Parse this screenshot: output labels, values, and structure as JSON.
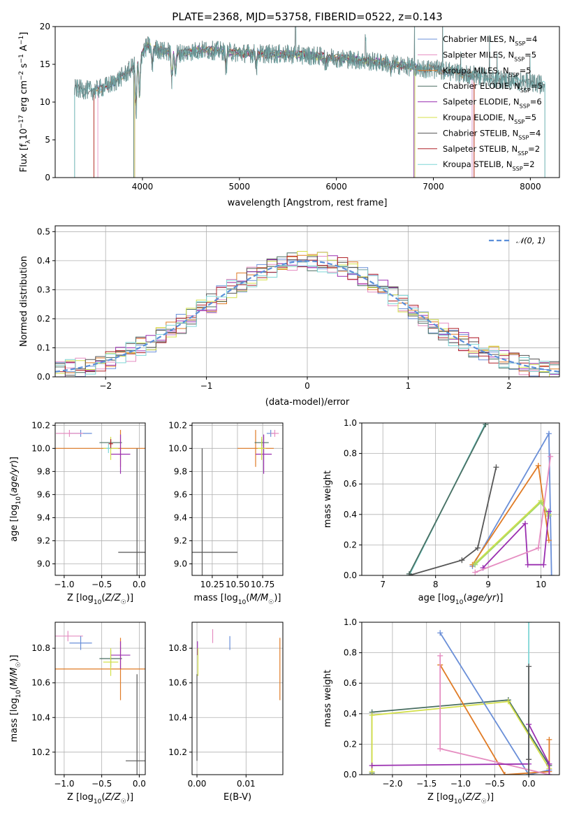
{
  "colors": {
    "chabrier_miles": "#6a8fd8",
    "salpeter_miles": "#e58dc1",
    "kroupa_miles": "#e07b25",
    "chabrier_elodie": "#4a6f62",
    "salpeter_elodie": "#9a2fb0",
    "kroupa_elodie": "#d4e04a",
    "chabrier_stelib": "#555555",
    "salpeter_stelib": "#b0242a",
    "kroupa_stelib": "#7fd6d6",
    "green_line": "#a6d96a",
    "normal": "#5b8fd9"
  },
  "chart_data": [
    {
      "id": "spectrum",
      "type": "line",
      "title": "PLATE=2368, MJD=53758, FIBERID=0522, z=0.143",
      "xlabel": "wavelength [Angstrom, rest frame]",
      "ylabel": "Flux [fλ10⁻¹⁷ erg cm⁻² s⁻¹ A⁻¹]",
      "xlim": [
        3100,
        8300
      ],
      "ylim": [
        0,
        20
      ],
      "xticks": [
        "4000",
        "5000",
        "6000",
        "7000",
        "8000"
      ],
      "yticks": [
        "0",
        "5",
        "10",
        "15",
        "20"
      ],
      "continuum": {
        "x": [
          3300,
          3500,
          3700,
          3850,
          3950,
          4050,
          4200,
          4400,
          4600,
          4800,
          5000,
          5300,
          5600,
          5900,
          6200,
          6500,
          6800,
          7100,
          7400,
          7700,
          8000,
          8150
        ],
        "y": [
          11.8,
          11.5,
          12.5,
          14.0,
          15.5,
          17.5,
          16.8,
          16.5,
          16.9,
          16.8,
          16.5,
          16.4,
          16.3,
          16.0,
          15.6,
          15.2,
          14.6,
          14.2,
          13.6,
          13.0,
          12.5,
          12.3
        ]
      },
      "legend": [
        {
          "label": "Chabrier MILES, NSSP=4",
          "color_key": "chabrier_miles"
        },
        {
          "label": "Salpeter MILES, NSSP=5",
          "color_key": "salpeter_miles"
        },
        {
          "label": "Kroupa MILES, NSSP=5",
          "color_key": "kroupa_miles"
        },
        {
          "label": "Chabrier ELODIE, NSSP=5",
          "color_key": "chabrier_elodie"
        },
        {
          "label": "Salpeter ELODIE, NSSP=6",
          "color_key": "salpeter_elodie"
        },
        {
          "label": "Kroupa ELODIE, NSSP=5",
          "color_key": "kroupa_elodie"
        },
        {
          "label": "Chabrier STELIB, NSSP=4",
          "color_key": "chabrier_stelib"
        },
        {
          "label": "Salpeter STELIB, NSSP=2",
          "color_key": "salpeter_stelib"
        },
        {
          "label": "Kroupa STELIB, NSSP=2",
          "color_key": "kroupa_stelib"
        }
      ],
      "legend_position": "right"
    },
    {
      "id": "residuals",
      "type": "histogram",
      "xlabel": "(data-model)/error",
      "ylabel": "Normed distribution",
      "xlim": [
        -2.5,
        2.5
      ],
      "ylim": [
        0,
        0.52
      ],
      "xticks": [
        "−2",
        "−1",
        "0",
        "1",
        "2"
      ],
      "yticks": [
        "0.0",
        "0.1",
        "0.2",
        "0.3",
        "0.4",
        "0.5"
      ],
      "bin_width": 0.1,
      "legend": "𝒩(0, 1)",
      "legend_position": "top-right",
      "grid": true
    },
    {
      "id": "age_vs_Z",
      "type": "errorbar",
      "xlabel": "Z [log10(Z/Z☉)]",
      "ylabel": "age  [log10(age/yr)]",
      "xlim": [
        -1.12,
        0.08
      ],
      "ylim": [
        8.9,
        10.22
      ],
      "xticks": [
        "−1.0",
        "−0.5",
        "0.0"
      ],
      "yticks": [
        "9.0",
        "9.2",
        "9.4",
        "9.6",
        "9.8",
        "10.0",
        "10.2"
      ],
      "points": [
        {
          "c": "chabrier_miles",
          "x": -0.78,
          "xe": 0.15,
          "y": 10.13,
          "ye": 0.03
        },
        {
          "c": "salpeter_miles",
          "x": -0.93,
          "xe": 0.18,
          "y": 10.13,
          "ye": 0.03
        },
        {
          "c": "kroupa_miles",
          "x": -0.25,
          "xe": 1.0,
          "y": 10.0,
          "ye": 0.16
        },
        {
          "c": "chabrier_elodie",
          "x": -0.38,
          "xe": 0.15,
          "y": 10.05,
          "ye": 0.03
        },
        {
          "c": "salpeter_elodie",
          "x": -0.25,
          "xe": 0.13,
          "y": 9.95,
          "ye": 0.17
        },
        {
          "c": "kroupa_elodie",
          "x": -0.38,
          "xe": 0.1,
          "y": 10.0,
          "ye": 0.1
        },
        {
          "c": "chabrier_stelib",
          "x": -0.03,
          "xe": 0.25,
          "y": 9.1,
          "ye": 0.9
        },
        {
          "c": "salpeter_stelib",
          "x": -0.38,
          "xe": 0.03,
          "y": 10.04,
          "ye": 0.04
        },
        {
          "c": "kroupa_stelib",
          "x": -0.41,
          "xe": 0.03,
          "y": 10.0,
          "ye": 0.04
        }
      ]
    },
    {
      "id": "age_vs_mass",
      "type": "errorbar",
      "xlabel": "mass [log10(M/M☉)]",
      "ylabel": "",
      "xlim": [
        10.05,
        10.95
      ],
      "ylim": [
        8.9,
        10.22
      ],
      "xticks": [
        "10.25",
        "10.50",
        "10.75"
      ],
      "yticks": [
        "9.0",
        "9.2",
        "9.4",
        "9.6",
        "9.8",
        "10.0",
        "10.2"
      ],
      "points": [
        {
          "c": "chabrier_miles",
          "x": 10.83,
          "xe": 0.04,
          "y": 10.13,
          "ye": 0.03
        },
        {
          "c": "salpeter_miles",
          "x": 10.87,
          "xe": 0.04,
          "y": 10.13,
          "ye": 0.03
        },
        {
          "c": "kroupa_miles",
          "x": 10.68,
          "xe": 0.18,
          "y": 10.0,
          "ye": 0.16
        },
        {
          "c": "chabrier_elodie",
          "x": 10.74,
          "xe": 0.07,
          "y": 10.05,
          "ye": 0.03
        },
        {
          "c": "salpeter_elodie",
          "x": 10.76,
          "xe": 0.08,
          "y": 9.95,
          "ye": 0.17
        },
        {
          "c": "kroupa_elodie",
          "x": 10.74,
          "xe": 0.04,
          "y": 10.0,
          "ye": 0.1
        },
        {
          "c": "chabrier_stelib",
          "x": 10.15,
          "xe": 0.35,
          "y": 9.1,
          "ye": 0.9
        }
      ]
    },
    {
      "id": "weight_vs_age",
      "type": "line",
      "xlabel": "age  [log10(age/yr)]",
      "ylabel": "mass weight",
      "xlim": [
        6.6,
        10.35
      ],
      "ylim": [
        0,
        1
      ],
      "xticks": [
        "7",
        "8",
        "9",
        "10"
      ],
      "yticks": [
        "0.0",
        "0.2",
        "0.4",
        "0.6",
        "0.8",
        "1.0"
      ],
      "grid": true,
      "series": [
        {
          "c": "kroupa_stelib",
          "x": [
            7.5,
            8.95
          ],
          "y": [
            0.0,
            1.0
          ]
        },
        {
          "c": "chabrier_elodie",
          "x": [
            7.5,
            8.95
          ],
          "y": [
            0.01,
            0.99
          ]
        },
        {
          "c": "chabrier_stelib",
          "x": [
            7.5,
            8.5,
            8.8,
            9.15
          ],
          "y": [
            0.0,
            0.1,
            0.18,
            0.71
          ]
        },
        {
          "c": "chabrier_miles",
          "x": [
            8.7,
            10.15,
            10.2
          ],
          "y": [
            0.06,
            0.93,
            0.0
          ]
        },
        {
          "c": "kroupa_miles",
          "x": [
            8.7,
            9.95,
            10.15
          ],
          "y": [
            0.07,
            0.72,
            0.23
          ]
        },
        {
          "c": "kroupa_elodie",
          "x": [
            8.75,
            10.0,
            10.15
          ],
          "y": [
            0.08,
            0.49,
            0.4
          ]
        },
        {
          "c": "green_line",
          "x": [
            8.75,
            10.0,
            10.15
          ],
          "y": [
            0.07,
            0.48,
            0.39
          ]
        },
        {
          "c": "salpeter_elodie",
          "x": [
            8.9,
            9.7,
            9.75,
            10.05,
            10.15
          ],
          "y": [
            0.05,
            0.34,
            0.07,
            0.07,
            0.42
          ]
        },
        {
          "c": "salpeter_miles",
          "x": [
            8.75,
            9.95,
            10.18
          ],
          "y": [
            0.02,
            0.18,
            0.78
          ]
        }
      ]
    },
    {
      "id": "mass_vs_Z",
      "type": "errorbar",
      "xlabel": "Z [log10(Z/Z☉)]",
      "ylabel": "mass [log10(M/M☉)]",
      "xlim": [
        -1.12,
        0.08
      ],
      "ylim": [
        10.07,
        10.95
      ],
      "xticks": [
        "−1.0",
        "−0.5",
        "0.0"
      ],
      "yticks": [
        "10.2",
        "10.4",
        "10.6",
        "10.8"
      ],
      "points": [
        {
          "c": "salpeter_miles",
          "x": -0.95,
          "xe": 0.2,
          "y": 10.87,
          "ye": 0.03
        },
        {
          "c": "chabrier_miles",
          "x": -0.78,
          "xe": 0.15,
          "y": 10.83,
          "ye": 0.04
        },
        {
          "c": "kroupa_miles",
          "x": -0.25,
          "xe": 1.0,
          "y": 10.68,
          "ye": 0.18
        },
        {
          "c": "chabrier_elodie",
          "x": -0.38,
          "xe": 0.15,
          "y": 10.74,
          "ye": 0.05
        },
        {
          "c": "salpeter_elodie",
          "x": -0.25,
          "xe": 0.13,
          "y": 10.76,
          "ye": 0.08
        },
        {
          "c": "kroupa_elodie",
          "x": -0.38,
          "xe": 0.1,
          "y": 10.72,
          "ye": 0.08
        },
        {
          "c": "chabrier_stelib",
          "x": -0.03,
          "xe": 0.15,
          "y": 10.15,
          "ye": 0.5
        }
      ]
    },
    {
      "id": "mass_vs_ebv",
      "type": "errorbar",
      "xlabel": "E(B-V)",
      "ylabel": "",
      "xlim": [
        -0.001,
        0.0175
      ],
      "ylim": [
        10.07,
        10.95
      ],
      "xticks": [
        "0.00",
        "0.01"
      ],
      "yticks": [
        "10.2",
        "10.4",
        "10.6",
        "10.8"
      ],
      "points": [
        {
          "c": "salpeter_miles",
          "x": 0.0032,
          "xe": 0,
          "y": 10.87,
          "ye": 0.04
        },
        {
          "c": "chabrier_miles",
          "x": 0.0067,
          "xe": 0,
          "y": 10.83,
          "ye": 0.04
        },
        {
          "c": "kroupa_miles",
          "x": 0.0169,
          "xe": 0,
          "y": 10.68,
          "ye": 0.18
        },
        {
          "c": "salpeter_elodie",
          "x": 0.0001,
          "xe": 0,
          "y": 10.8,
          "ye": 0.04
        },
        {
          "c": "kroupa_elodie",
          "x": 0.0002,
          "xe": 0,
          "y": 10.72,
          "ye": 0.08
        },
        {
          "c": "chabrier_stelib",
          "x": 0.0,
          "xe": 0,
          "y": 10.4,
          "ye": 0.25
        }
      ]
    },
    {
      "id": "weight_vs_Z",
      "type": "line",
      "xlabel": "Z [log10(Z/Z☉)]",
      "ylabel": "mass weight",
      "xlim": [
        -2.45,
        0.45
      ],
      "ylim": [
        0,
        1
      ],
      "xticks": [
        "−2.0",
        "−1.5",
        "−1.0",
        "−0.5",
        "0.0"
      ],
      "yticks": [
        "0.0",
        "0.2",
        "0.4",
        "0.6",
        "0.8",
        "1.0"
      ],
      "grid": true,
      "series": [
        {
          "c": "chabrier_elodie",
          "x": [
            -2.3,
            -2.3,
            -0.3,
            0.3
          ],
          "y": [
            0.01,
            0.41,
            0.49,
            0.06
          ]
        },
        {
          "c": "kroupa_elodie",
          "x": [
            -2.3,
            -2.3,
            -0.3,
            0.3
          ],
          "y": [
            0.02,
            0.39,
            0.48,
            0.04
          ]
        },
        {
          "c": "chabrier_miles",
          "x": [
            -1.3,
            0.0,
            0.3
          ],
          "y": [
            0.93,
            0.0,
            0.03
          ]
        },
        {
          "c": "kroupa_miles",
          "x": [
            -1.3,
            -0.35,
            0.3,
            0.3
          ],
          "y": [
            0.72,
            0.0,
            0.02,
            0.23
          ]
        },
        {
          "c": "salpeter_miles",
          "x": [
            -1.3,
            -1.3,
            0.3,
            0.3
          ],
          "y": [
            0.78,
            0.17,
            0.0,
            0.07
          ]
        },
        {
          "c": "salpeter_elodie",
          "x": [
            -2.3,
            0.0,
            0.0,
            0.3,
            0.3
          ],
          "y": [
            0.06,
            0.07,
            0.33,
            0.07,
            0.0
          ]
        },
        {
          "c": "kroupa_stelib",
          "x": [
            0.0,
            0.0
          ],
          "y": [
            0.0,
            1.0
          ]
        },
        {
          "c": "chabrier_stelib",
          "x": [
            0.0,
            0.0,
            0.0
          ],
          "y": [
            0.0,
            0.1,
            0.71
          ]
        }
      ]
    }
  ]
}
